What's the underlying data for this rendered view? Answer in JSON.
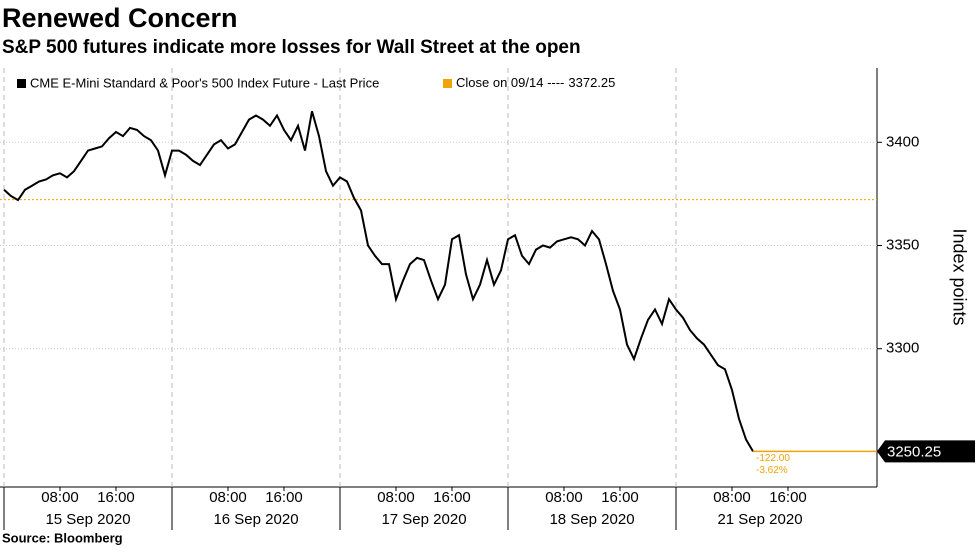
{
  "chart_data": {
    "type": "line",
    "title": "Renewed Concern",
    "subtitle": "S&P 500 futures indicate more losses for Wall Street at the open",
    "source": "Source: Bloomberg",
    "y_label": "Index points",
    "days": [
      "15 Sep 2020",
      "16 Sep 2020",
      "17 Sep 2020",
      "18 Sep 2020",
      "21 Sep 2020"
    ],
    "hour_ticks": [
      "08:00",
      "16:00"
    ],
    "ylim": [
      3233,
      3436
    ],
    "yticks": [
      3300,
      3350,
      3400
    ],
    "grid": true,
    "reference": {
      "label": "Close on 09/14 ----",
      "value": 3372.25,
      "color": "#f0a30a"
    },
    "annotations": [
      "-122.00",
      "-3.62%"
    ],
    "series": [
      {
        "name": "CME E-Mini Standard & Poor's 500 Index Future - Last Price",
        "color": "#000000",
        "x": [
          "15 Sep 2020 00:00",
          "15 Sep 2020 01:00",
          "15 Sep 2020 02:00",
          "15 Sep 2020 03:00",
          "15 Sep 2020 04:00",
          "15 Sep 2020 05:00",
          "15 Sep 2020 06:00",
          "15 Sep 2020 07:00",
          "15 Sep 2020 08:00",
          "15 Sep 2020 09:00",
          "15 Sep 2020 10:00",
          "15 Sep 2020 11:00",
          "15 Sep 2020 12:00",
          "15 Sep 2020 13:00",
          "15 Sep 2020 14:00",
          "15 Sep 2020 15:00",
          "15 Sep 2020 16:00",
          "15 Sep 2020 17:00",
          "15 Sep 2020 18:00",
          "15 Sep 2020 19:00",
          "15 Sep 2020 20:00",
          "15 Sep 2020 21:00",
          "15 Sep 2020 22:00",
          "15 Sep 2020 23:00",
          "16 Sep 2020 00:00",
          "16 Sep 2020 01:00",
          "16 Sep 2020 02:00",
          "16 Sep 2020 03:00",
          "16 Sep 2020 04:00",
          "16 Sep 2020 05:00",
          "16 Sep 2020 06:00",
          "16 Sep 2020 07:00",
          "16 Sep 2020 08:00",
          "16 Sep 2020 09:00",
          "16 Sep 2020 10:00",
          "16 Sep 2020 11:00",
          "16 Sep 2020 12:00",
          "16 Sep 2020 13:00",
          "16 Sep 2020 14:00",
          "16 Sep 2020 15:00",
          "16 Sep 2020 16:00",
          "16 Sep 2020 17:00",
          "16 Sep 2020 18:00",
          "16 Sep 2020 19:00",
          "16 Sep 2020 20:00",
          "16 Sep 2020 21:00",
          "16 Sep 2020 22:00",
          "16 Sep 2020 23:00",
          "17 Sep 2020 00:00",
          "17 Sep 2020 01:00",
          "17 Sep 2020 02:00",
          "17 Sep 2020 03:00",
          "17 Sep 2020 04:00",
          "17 Sep 2020 05:00",
          "17 Sep 2020 06:00",
          "17 Sep 2020 07:00",
          "17 Sep 2020 08:00",
          "17 Sep 2020 09:00",
          "17 Sep 2020 10:00",
          "17 Sep 2020 11:00",
          "17 Sep 2020 12:00",
          "17 Sep 2020 13:00",
          "17 Sep 2020 14:00",
          "17 Sep 2020 15:00",
          "17 Sep 2020 16:00",
          "17 Sep 2020 17:00",
          "17 Sep 2020 18:00",
          "17 Sep 2020 19:00",
          "17 Sep 2020 20:00",
          "17 Sep 2020 21:00",
          "17 Sep 2020 22:00",
          "17 Sep 2020 23:00",
          "18 Sep 2020 00:00",
          "18 Sep 2020 01:00",
          "18 Sep 2020 02:00",
          "18 Sep 2020 03:00",
          "18 Sep 2020 04:00",
          "18 Sep 2020 05:00",
          "18 Sep 2020 06:00",
          "18 Sep 2020 07:00",
          "18 Sep 2020 08:00",
          "18 Sep 2020 09:00",
          "18 Sep 2020 10:00",
          "18 Sep 2020 11:00",
          "18 Sep 2020 12:00",
          "18 Sep 2020 13:00",
          "18 Sep 2020 14:00",
          "18 Sep 2020 15:00",
          "18 Sep 2020 16:00",
          "18 Sep 2020 17:00",
          "18 Sep 2020 18:00",
          "18 Sep 2020 19:00",
          "18 Sep 2020 20:00",
          "18 Sep 2020 21:00",
          "18 Sep 2020 22:00",
          "18 Sep 2020 23:00",
          "21 Sep 2020 00:00",
          "21 Sep 2020 01:00",
          "21 Sep 2020 02:00",
          "21 Sep 2020 03:00",
          "21 Sep 2020 04:00",
          "21 Sep 2020 05:00",
          "21 Sep 2020 06:00",
          "21 Sep 2020 07:00",
          "21 Sep 2020 08:00",
          "21 Sep 2020 09:00",
          "21 Sep 2020 10:00",
          "21 Sep 2020 11:00"
        ],
        "values": [
          3377,
          3374,
          3372,
          3377,
          3379,
          3381,
          3382,
          3384,
          3385,
          3383,
          3386,
          3391,
          3396,
          3397,
          3398,
          3402,
          3405,
          3403,
          3407,
          3406,
          3403,
          3401,
          3396,
          3384,
          3396,
          3396,
          3394,
          3391,
          3389,
          3394,
          3399,
          3401,
          3397,
          3399,
          3405,
          3411,
          3413,
          3411,
          3408,
          3413,
          3406,
          3401,
          3408,
          3396,
          3415,
          3403,
          3386,
          3379,
          3383,
          3381,
          3373,
          3367,
          3350,
          3345,
          3341,
          3341,
          3324,
          3333,
          3341,
          3344,
          3343,
          3333,
          3324,
          3331,
          3353,
          3355,
          3336,
          3324,
          3331,
          3343,
          3331,
          3338,
          3353,
          3355,
          3345,
          3341,
          3348,
          3350,
          3349,
          3352,
          3353,
          3354,
          3353,
          3350,
          3357,
          3353,
          3341,
          3328,
          3319,
          3302,
          3295,
          3305,
          3314,
          3319,
          3312,
          3324,
          3319,
          3315,
          3309,
          3305,
          3302,
          3297,
          3292,
          3290,
          3280,
          3266,
          3256,
          3250.25
        ]
      }
    ]
  }
}
